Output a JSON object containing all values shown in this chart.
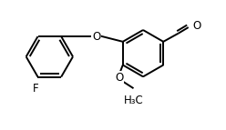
{
  "bg": "#ffffff",
  "lc": "#000000",
  "lw": 1.4,
  "fs": 8.5,
  "b1cx": 1.1,
  "b1cy": 2.5,
  "b1r": 0.7,
  "b2cx": 3.9,
  "b2cy": 2.6,
  "b2r": 0.7,
  "xlim": [
    0.0,
    6.0
  ],
  "ylim": [
    0.3,
    4.2
  ]
}
